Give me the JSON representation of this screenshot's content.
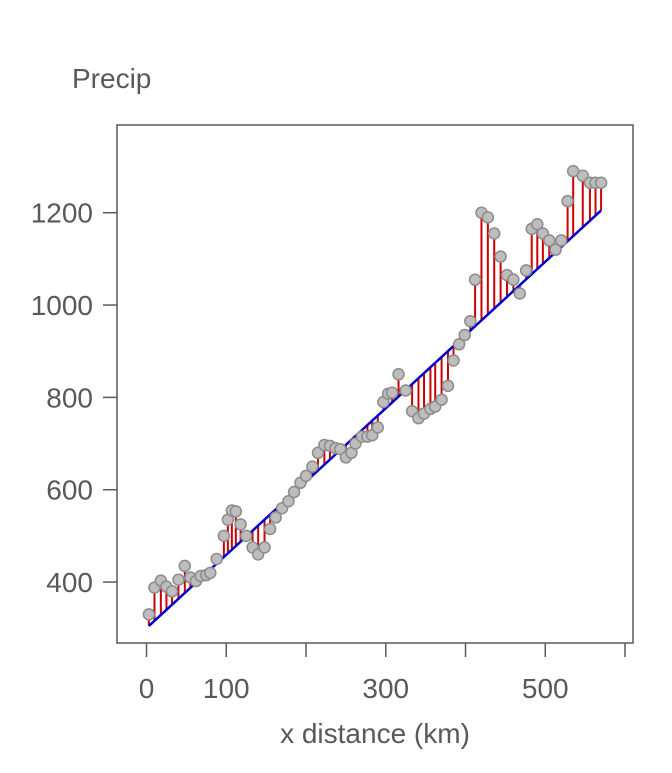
{
  "chart_data": {
    "type": "scatter",
    "title": "",
    "ylabel": "Precip",
    "xlabel": "x distance (km)",
    "xlim": [
      -37,
      610
    ],
    "ylim": [
      268,
      1390
    ],
    "x_ticks": [
      0,
      100,
      200,
      300,
      400,
      500,
      600
    ],
    "x_tick_labels": [
      "0",
      "100",
      "",
      "300",
      "",
      "500",
      ""
    ],
    "y_ticks": [
      400,
      600,
      800,
      1000,
      1200
    ],
    "y_tick_labels": [
      "400",
      "600",
      "800",
      "1000",
      "1200"
    ],
    "grid": false,
    "legend": "none",
    "colors": {
      "points_fill": "#bdbdbd",
      "points_stroke": "#8c8c8c",
      "residual": "#cc0000",
      "fit_line": "#0000cc",
      "axis": "#595959"
    },
    "fit_line": {
      "x": [
        3,
        570
      ],
      "y": [
        305,
        1205
      ]
    },
    "points": {
      "x": [
        3,
        10,
        18,
        25,
        32,
        40,
        48,
        55,
        62,
        68,
        75,
        80,
        88,
        97,
        102,
        107,
        112,
        118,
        125,
        133,
        140,
        148,
        155,
        162,
        170,
        178,
        185,
        193,
        200,
        208,
        215,
        223,
        230,
        237,
        243,
        250,
        257,
        262,
        270,
        277,
        283,
        290,
        297,
        303,
        308,
        316,
        325,
        333,
        341,
        348,
        356,
        362,
        370,
        378,
        385,
        392,
        399,
        406,
        412,
        420,
        428,
        436,
        444,
        452,
        460,
        468,
        476,
        483,
        490,
        497,
        505,
        513,
        520,
        528,
        535,
        547,
        556,
        563,
        570
      ],
      "y": [
        330,
        388,
        403,
        390,
        380,
        405,
        435,
        410,
        402,
        413,
        415,
        420,
        450,
        500,
        535,
        555,
        553,
        525,
        500,
        475,
        460,
        475,
        515,
        540,
        560,
        575,
        595,
        615,
        630,
        650,
        680,
        697,
        695,
        690,
        688,
        670,
        680,
        700,
        715,
        715,
        718,
        735,
        790,
        808,
        810,
        850,
        815,
        770,
        755,
        765,
        775,
        780,
        795,
        825,
        880,
        915,
        935,
        965,
        1055,
        1200,
        1190,
        1155,
        1105,
        1065,
        1055,
        1025,
        1075,
        1165,
        1175,
        1155,
        1140,
        1120,
        1140,
        1225,
        1290,
        1280,
        1265,
        1265,
        1265
      ]
    }
  }
}
